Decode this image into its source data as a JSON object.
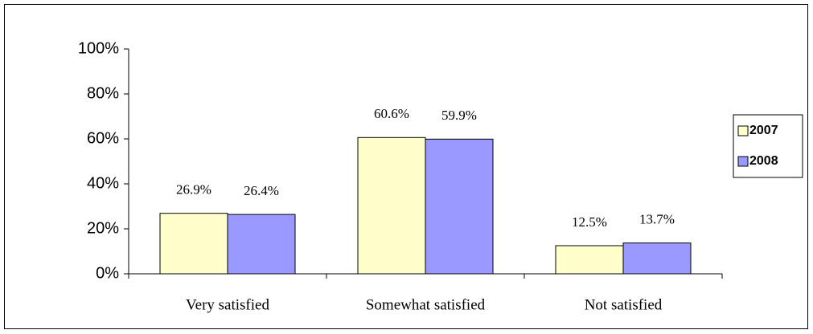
{
  "chart_data": {
    "type": "bar",
    "categories": [
      "Very satisfied",
      "Somewhat satisfied",
      "Not satisfied"
    ],
    "series": [
      {
        "name": "2007",
        "color": "#ffffcc",
        "values": [
          26.9,
          60.6,
          12.5
        ],
        "value_labels": [
          "26.9%",
          "60.6%",
          "12.5%"
        ]
      },
      {
        "name": "2008",
        "color": "#9999ff",
        "values": [
          26.4,
          59.9,
          13.7
        ],
        "value_labels": [
          "26.4%",
          "59.9%",
          "13.7%"
        ]
      }
    ],
    "ylim": [
      0,
      100
    ],
    "yticks": [
      {
        "value": 0,
        "label": "0%"
      },
      {
        "value": 20,
        "label": "20%"
      },
      {
        "value": 40,
        "label": "40%"
      },
      {
        "value": 60,
        "label": "60%"
      },
      {
        "value": 80,
        "label": "80%"
      },
      {
        "value": 100,
        "label": "100%"
      }
    ],
    "legend": "right"
  }
}
